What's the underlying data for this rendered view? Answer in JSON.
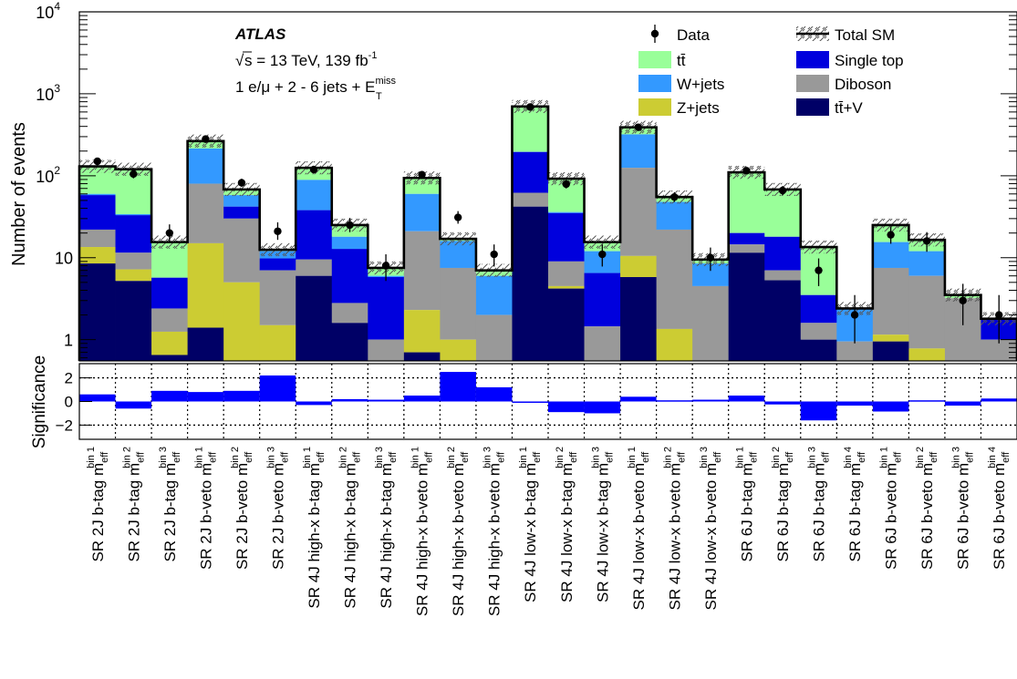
{
  "chart_data": {
    "type": "bar",
    "ylabel_top": "Number of events",
    "ylabel_bottom": "Significance",
    "yscale": "log",
    "ylim": [
      0.55,
      10000
    ],
    "y_ticks": [
      {
        "v": 1,
        "label": "1"
      },
      {
        "v": 10,
        "label": "10"
      },
      {
        "v": 100,
        "label": "10",
        "sup": "2"
      },
      {
        "v": 1000,
        "label": "10",
        "sup": "3"
      },
      {
        "v": 10000,
        "label": "10",
        "sup": "4"
      }
    ],
    "sig_ylim": [
      -3.2,
      3.2
    ],
    "sig_ticks": [
      {
        "v": 2,
        "label": "2"
      },
      {
        "v": 0,
        "label": "0"
      },
      {
        "v": -2,
        "label": "−2"
      }
    ],
    "atlas_label": "ATLAS",
    "energy_label_text": "s = 13 TeV, 139 fb",
    "energy_label_sup": "-1",
    "selection_label_text": "1 e/μ + 2 - 6 jets + E",
    "selection_label_sup": "miss",
    "selection_label_sub": "T",
    "legend": [
      {
        "name": "Data",
        "kind": "data"
      },
      {
        "name": "Total SM",
        "kind": "total"
      },
      {
        "name": "tt̄",
        "kind": "fill",
        "color": "#99ff99"
      },
      {
        "name": "Single top",
        "kind": "fill",
        "color": "#0000dd"
      },
      {
        "name": "W+jets",
        "kind": "fill",
        "color": "#3399ff"
      },
      {
        "name": "Diboson",
        "kind": "fill",
        "color": "#999999"
      },
      {
        "name": "Z+jets",
        "kind": "fill",
        "color": "#cccc33"
      },
      {
        "name": "tt̄+V",
        "kind": "fill",
        "color": "#000066"
      }
    ],
    "stack_order": [
      "tt̄+V",
      "Z+jets",
      "Diboson",
      "Single top",
      "W+jets",
      "tt̄"
    ],
    "categories": [
      {
        "text": "SR 2J b-tag m",
        "sub": "eff",
        "sup": "bin 1"
      },
      {
        "text": "SR 2J b-tag m",
        "sub": "eff",
        "sup": "bin 2"
      },
      {
        "text": "SR 2J b-tag m",
        "sub": "eff",
        "sup": "bin 3"
      },
      {
        "text": "SR 2J b-veto m",
        "sub": "eff",
        "sup": "bin 1"
      },
      {
        "text": "SR 2J b-veto m",
        "sub": "eff",
        "sup": "bin 2"
      },
      {
        "text": "SR 2J b-veto m",
        "sub": "eff",
        "sup": "bin 3"
      },
      {
        "text": "SR 4J high-x b-tag m",
        "sub": "eff",
        "sup": "bin 1"
      },
      {
        "text": "SR 4J high-x b-tag m",
        "sub": "eff",
        "sup": "bin 2"
      },
      {
        "text": "SR 4J high-x b-tag m",
        "sub": "eff",
        "sup": "bin 3"
      },
      {
        "text": "SR 4J high-x b-veto m",
        "sub": "eff",
        "sup": "bin 1"
      },
      {
        "text": "SR 4J high-x b-veto m",
        "sub": "eff",
        "sup": "bin 2"
      },
      {
        "text": "SR 4J high-x b-veto m",
        "sub": "eff",
        "sup": "bin 3"
      },
      {
        "text": "SR 4J low-x b-tag m",
        "sub": "eff",
        "sup": "bin 1"
      },
      {
        "text": "SR 4J low-x b-tag m",
        "sub": "eff",
        "sup": "bin 2"
      },
      {
        "text": "SR 4J low-x b-tag m",
        "sub": "eff",
        "sup": "bin 3"
      },
      {
        "text": "SR 4J low-x b-veto m",
        "sub": "eff",
        "sup": "bin 1"
      },
      {
        "text": "SR 4J low-x b-veto m",
        "sub": "eff",
        "sup": "bin 2"
      },
      {
        "text": "SR 4J low-x b-veto m",
        "sub": "eff",
        "sup": "bin 3"
      },
      {
        "text": "SR 6J b-tag m",
        "sub": "eff",
        "sup": "bin 1"
      },
      {
        "text": "SR 6J b-tag m",
        "sub": "eff",
        "sup": "bin 2"
      },
      {
        "text": "SR 6J b-tag m",
        "sub": "eff",
        "sup": "bin 3"
      },
      {
        "text": "SR 6J b-tag m",
        "sub": "eff",
        "sup": "bin 4"
      },
      {
        "text": "SR 6J b-veto m",
        "sub": "eff",
        "sup": "bin 1"
      },
      {
        "text": "SR 6J b-veto m",
        "sub": "eff",
        "sup": "bin 2"
      },
      {
        "text": "SR 6J b-veto m",
        "sub": "eff",
        "sup": "bin 3"
      },
      {
        "text": "SR 6J b-veto m",
        "sub": "eff",
        "sup": "bin 4"
      }
    ],
    "series_cumulative": [
      {
        "name": "tt̄+V",
        "values": [
          8.5,
          5.2,
          0.65,
          1.4,
          0.55,
          0.55,
          6,
          1.6,
          0.55,
          0.7,
          0.55,
          0.55,
          42,
          4.2,
          0.55,
          5.8,
          0.55,
          0.55,
          11.5,
          5.3,
          1.0,
          0.55,
          0.95,
          0.55,
          0.55,
          0.55
        ]
      },
      {
        "name": "Z+jets",
        "values": [
          13.5,
          7.2,
          1.25,
          15,
          5,
          1.5,
          6,
          1.6,
          0.55,
          2.3,
          1,
          0.55,
          42,
          4.5,
          0.55,
          10.5,
          1.35,
          0.55,
          11.5,
          5.3,
          1.0,
          0.55,
          1.15,
          0.78,
          0.55,
          0.55
        ]
      },
      {
        "name": "Diboson",
        "values": [
          22,
          11.5,
          2.4,
          80,
          30,
          7,
          9.5,
          2.8,
          1.0,
          21,
          7.5,
          2.0,
          62,
          9,
          1.45,
          125,
          22,
          4.5,
          14.5,
          7,
          1.6,
          0.95,
          7.5,
          6,
          3.2,
          1.0
        ]
      },
      {
        "name": "Single top",
        "values": [
          58,
          33,
          5.7,
          80,
          42,
          9.8,
          38,
          12.8,
          5.8,
          21,
          7.5,
          2.0,
          195,
          35,
          6.5,
          125,
          22,
          4.5,
          20,
          18,
          3.5,
          0.95,
          7.5,
          6,
          3.2,
          1.75
        ]
      },
      {
        "name": "W+jets",
        "values": [
          60,
          34,
          5.7,
          215,
          58,
          12,
          89,
          18,
          6,
          60,
          16,
          6,
          196,
          36,
          12,
          320,
          48,
          8.5,
          20,
          18,
          3.5,
          2.35,
          15.5,
          12,
          3.2,
          1.75
        ]
      },
      {
        "name": "tt̄",
        "values": [
          130,
          120,
          15.5,
          265,
          68,
          12.5,
          125,
          25,
          7.5,
          94,
          17,
          7,
          700,
          92,
          15.5,
          390,
          55,
          9.5,
          110,
          68,
          13.5,
          2.4,
          25,
          16.5,
          3.5,
          1.8
        ]
      }
    ],
    "data": [
      {
        "y": 150,
        "up": 165,
        "dn": 135
      },
      {
        "y": 105,
        "up": 118,
        "dn": 93
      },
      {
        "y": 20,
        "up": 25.5,
        "dn": 15.5
      },
      {
        "y": 280,
        "up": 298,
        "dn": 262
      },
      {
        "y": 82,
        "up": 92,
        "dn": 73
      },
      {
        "y": 21,
        "up": 27,
        "dn": 16.5
      },
      {
        "y": 119,
        "up": 131,
        "dn": 108
      },
      {
        "y": 25,
        "up": 30.5,
        "dn": 20.5
      },
      {
        "y": 8,
        "up": 11,
        "dn": 5.2
      },
      {
        "y": 103,
        "up": 114,
        "dn": 93
      },
      {
        "y": 31,
        "up": 37,
        "dn": 26
      },
      {
        "y": 11,
        "up": 14.5,
        "dn": 7.8
      },
      {
        "y": 690,
        "up": 720,
        "dn": 664
      },
      {
        "y": 79,
        "up": 89,
        "dn": 70
      },
      {
        "y": 11,
        "up": 14.5,
        "dn": 7.8
      },
      {
        "y": 390,
        "up": 412,
        "dn": 370
      },
      {
        "y": 55,
        "up": 63,
        "dn": 48
      },
      {
        "y": 10,
        "up": 13.3,
        "dn": 6.9
      },
      {
        "y": 115,
        "up": 127,
        "dn": 104
      },
      {
        "y": 66,
        "up": 75,
        "dn": 58
      },
      {
        "y": 7,
        "up": 9.8,
        "dn": 4.5
      },
      {
        "y": 2,
        "up": 3.5,
        "dn": 0.9
      },
      {
        "y": 19,
        "up": 24,
        "dn": 14.8
      },
      {
        "y": 16,
        "up": 20.5,
        "dn": 11.8
      },
      {
        "y": 3,
        "up": 4.8,
        "dn": 1.5
      },
      {
        "y": 2,
        "up": 3.5,
        "dn": 0.9
      }
    ],
    "significance": [
      0.6,
      -0.6,
      0.9,
      0.8,
      0.9,
      2.2,
      -0.3,
      0.2,
      0.15,
      0.5,
      2.5,
      1.2,
      -0.1,
      -0.9,
      -1.0,
      0.4,
      0.1,
      0.15,
      0.5,
      -0.25,
      -1.6,
      -0.35,
      -0.85,
      0.1,
      -0.35,
      0.25
    ]
  }
}
